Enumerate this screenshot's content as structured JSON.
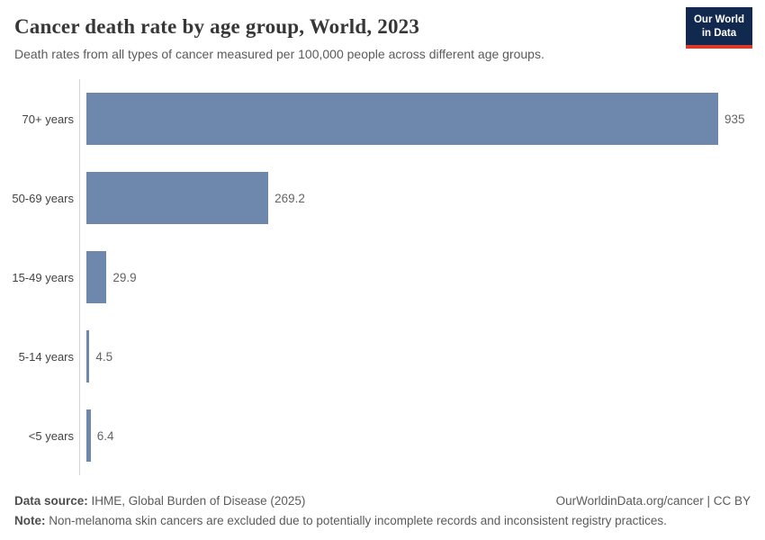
{
  "header": {
    "title": "Cancer death rate by age group, World, 2023",
    "subtitle": "Death rates from all types of cancer measured per 100,000 people across different age groups.",
    "logo_line1": "Our World",
    "logo_line2": "in Data"
  },
  "chart_data": {
    "type": "bar",
    "orientation": "horizontal",
    "title": "Cancer death rate by age group, World, 2023",
    "categories": [
      "70+ years",
      "50-69 years",
      "15-49 years",
      "5-14 years",
      "<5 years"
    ],
    "values": [
      935,
      269.2,
      29.9,
      4.5,
      6.4
    ],
    "value_labels": [
      "935",
      "269.2",
      "29.9",
      "4.5",
      "6.4"
    ],
    "xlabel": "",
    "ylabel": "",
    "xlim": [
      0,
      935
    ],
    "grid": false,
    "legend": false,
    "bar_color": "#6d87ad"
  },
  "footer": {
    "data_source_label": "Data source:",
    "data_source_value": "IHME, Global Burden of Disease (2025)",
    "link_text": "OurWorldinData.org/cancer | CC BY",
    "note_label": "Note:",
    "note_value": "Non-melanoma skin cancers are excluded due to potentially incomplete records and inconsistent registry practices."
  },
  "colors": {
    "bar": "#6d87ad",
    "axis_line": "#d5d5d5",
    "logo_background": "#12294f",
    "logo_accent": "#d93a2b"
  }
}
